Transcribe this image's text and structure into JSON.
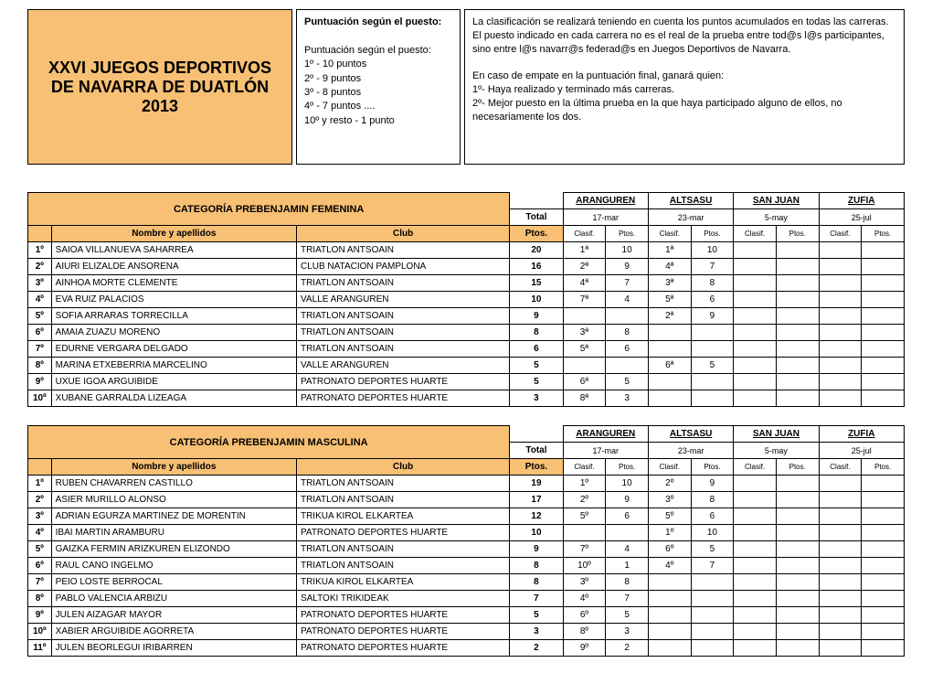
{
  "header": {
    "title": "XXVI\nJUEGOS DEPORTIVOS DE NAVARRA DE DUATLÓN 2013",
    "scoring_title": "Puntuación según el puesto:",
    "scoring_body": "Puntuación según el puesto:\n1º - 10 puntos\n2º - 9 puntos\n3º - 8 puntos\n4º - 7 puntos ....\n10º y resto - 1 punto",
    "rules": "La clasificación se realizará teniendo en cuenta los puntos acumulados en todas las carreras. El puesto indicado en cada carrera no es el real de la prueba entre tod@s l@s participantes, sino entre l@s navarr@s federad@s en Juegos Deportivos de Navarra.\n\nEn caso de empate en la puntuación final, ganará quien:\n1º- Haya realizado y terminado más carreras.\n2º- Mejor puesto en la última prueba en la que haya participado alguno de ellos, no necesariamente los dos."
  },
  "events": [
    {
      "name": "ARANGUREN",
      "date": "17-mar"
    },
    {
      "name": "ALTSASU",
      "date": "23-mar"
    },
    {
      "name": "SAN JUAN",
      "date": "5-may"
    },
    {
      "name": "ZUFIA",
      "date": "25-jul"
    }
  ],
  "labels": {
    "total": "Total",
    "name": "Nombre y apellidos",
    "club": "Club",
    "ptos": "Ptos.",
    "clasif": "Clasif."
  },
  "categories": [
    {
      "title": "CATEGORÍA PREBENJAMIN FEMENINA",
      "rows": [
        {
          "rank": "1º",
          "name": "SAIOA VILLANUEVA SAHARREA",
          "club": "TRIATLON ANTSOAIN",
          "total": "20",
          "r": [
            [
              "1ª",
              "10"
            ],
            [
              "1ª",
              "10"
            ],
            [
              "",
              ""
            ],
            [
              "",
              ""
            ]
          ]
        },
        {
          "rank": "2º",
          "name": "AIURI ELIZALDE ANSORENA",
          "club": "CLUB NATACION PAMPLONA",
          "total": "16",
          "r": [
            [
              "2ª",
              "9"
            ],
            [
              "4ª",
              "7"
            ],
            [
              "",
              ""
            ],
            [
              "",
              ""
            ]
          ]
        },
        {
          "rank": "3º",
          "name": "AINHOA MORTE CLEMENTE",
          "club": "TRIATLON ANTSOAIN",
          "total": "15",
          "r": [
            [
              "4ª",
              "7"
            ],
            [
              "3ª",
              "8"
            ],
            [
              "",
              ""
            ],
            [
              "",
              ""
            ]
          ]
        },
        {
          "rank": "4º",
          "name": "EVA RUIZ PALACIOS",
          "club": "VALLE ARANGUREN",
          "total": "10",
          "r": [
            [
              "7ª",
              "4"
            ],
            [
              "5ª",
              "6"
            ],
            [
              "",
              ""
            ],
            [
              "",
              ""
            ]
          ]
        },
        {
          "rank": "5º",
          "name": "SOFIA ARRARAS TORRECILLA",
          "club": "TRIATLON ANTSOAIN",
          "total": "9",
          "r": [
            [
              "",
              ""
            ],
            [
              "2ª",
              "9"
            ],
            [
              "",
              ""
            ],
            [
              "",
              ""
            ]
          ]
        },
        {
          "rank": "6º",
          "name": "AMAIA ZUAZU MORENO",
          "club": "TRIATLON ANTSOAIN",
          "total": "8",
          "r": [
            [
              "3ª",
              "8"
            ],
            [
              "",
              ""
            ],
            [
              "",
              ""
            ],
            [
              "",
              ""
            ]
          ]
        },
        {
          "rank": "7º",
          "name": "EDURNE VERGARA DELGADO",
          "club": "TRIATLON ANTSOAIN",
          "total": "6",
          "r": [
            [
              "5ª",
              "6"
            ],
            [
              "",
              ""
            ],
            [
              "",
              ""
            ],
            [
              "",
              ""
            ]
          ]
        },
        {
          "rank": "8º",
          "name": "MARINA ETXEBERRIA MARCELINO",
          "club": "VALLE ARANGUREN",
          "total": "5",
          "r": [
            [
              "",
              ""
            ],
            [
              "6ª",
              "5"
            ],
            [
              "",
              ""
            ],
            [
              "",
              ""
            ]
          ]
        },
        {
          "rank": "9º",
          "name": "UXUE IGOA ARGUIBIDE",
          "club": "PATRONATO DEPORTES HUARTE",
          "total": "5",
          "r": [
            [
              "6ª",
              "5"
            ],
            [
              "",
              ""
            ],
            [
              "",
              ""
            ],
            [
              "",
              ""
            ]
          ]
        },
        {
          "rank": "10º",
          "name": "XUBANE GARRALDA LIZEAGA",
          "club": "PATRONATO DEPORTES HUARTE",
          "total": "3",
          "r": [
            [
              "8ª",
              "3"
            ],
            [
              "",
              ""
            ],
            [
              "",
              ""
            ],
            [
              "",
              ""
            ]
          ]
        }
      ]
    },
    {
      "title": "CATEGORÍA PREBENJAMIN MASCULINA",
      "rows": [
        {
          "rank": "1º",
          "name": "RUBEN CHAVARREN CASTILLO",
          "club": "TRIATLON ANTSOAIN",
          "total": "19",
          "r": [
            [
              "1º",
              "10"
            ],
            [
              "2º",
              "9"
            ],
            [
              "",
              ""
            ],
            [
              "",
              ""
            ]
          ]
        },
        {
          "rank": "2º",
          "name": "ASIER MURILLO ALONSO",
          "club": "TRIATLON ANTSOAIN",
          "total": "17",
          "r": [
            [
              "2º",
              "9"
            ],
            [
              "3º",
              "8"
            ],
            [
              "",
              ""
            ],
            [
              "",
              ""
            ]
          ]
        },
        {
          "rank": "3º",
          "name": "ADRIAN EGURZA MARTINEZ DE MORENTIN",
          "club": "TRIKUA KIROL ELKARTEA",
          "total": "12",
          "r": [
            [
              "5º",
              "6"
            ],
            [
              "5º",
              "6"
            ],
            [
              "",
              ""
            ],
            [
              "",
              ""
            ]
          ]
        },
        {
          "rank": "4º",
          "name": "IBAI MARTIN ARAMBURU",
          "club": "PATRONATO DEPORTES HUARTE",
          "total": "10",
          "r": [
            [
              "",
              ""
            ],
            [
              "1º",
              "10"
            ],
            [
              "",
              ""
            ],
            [
              "",
              ""
            ]
          ]
        },
        {
          "rank": "5º",
          "name": "GAIZKA FERMIN ARIZKUREN ELIZONDO",
          "club": "TRIATLON ANTSOAIN",
          "total": "9",
          "r": [
            [
              "7º",
              "4"
            ],
            [
              "6º",
              "5"
            ],
            [
              "",
              ""
            ],
            [
              "",
              ""
            ]
          ]
        },
        {
          "rank": "6º",
          "name": "RAUL CANO INGELMO",
          "club": "TRIATLON ANTSOAIN",
          "total": "8",
          "r": [
            [
              "10º",
              "1"
            ],
            [
              "4º",
              "7"
            ],
            [
              "",
              ""
            ],
            [
              "",
              ""
            ]
          ]
        },
        {
          "rank": "7º",
          "name": "PEIO LOSTE BERROCAL",
          "club": "TRIKUA KIROL ELKARTEA",
          "total": "8",
          "r": [
            [
              "3º",
              "8"
            ],
            [
              "",
              ""
            ],
            [
              "",
              ""
            ],
            [
              "",
              ""
            ]
          ]
        },
        {
          "rank": "8º",
          "name": "PABLO VALENCIA ARBIZU",
          "club": "SALTOKI TRIKIDEAK",
          "total": "7",
          "r": [
            [
              "4º",
              "7"
            ],
            [
              "",
              ""
            ],
            [
              "",
              ""
            ],
            [
              "",
              ""
            ]
          ]
        },
        {
          "rank": "9º",
          "name": "JULEN AIZAGAR MAYOR",
          "club": "PATRONATO DEPORTES HUARTE",
          "total": "5",
          "r": [
            [
              "6º",
              "5"
            ],
            [
              "",
              ""
            ],
            [
              "",
              ""
            ],
            [
              "",
              ""
            ]
          ]
        },
        {
          "rank": "10º",
          "name": "XABIER ARGUIBIDE AGORRETA",
          "club": "PATRONATO DEPORTES HUARTE",
          "total": "3",
          "r": [
            [
              "8º",
              "3"
            ],
            [
              "",
              ""
            ],
            [
              "",
              ""
            ],
            [
              "",
              ""
            ]
          ]
        },
        {
          "rank": "11º",
          "name": "JULEN BEORLEGUI IRIBARREN",
          "club": "PATRONATO DEPORTES HUARTE",
          "total": "2",
          "r": [
            [
              "9º",
              "2"
            ],
            [
              "",
              ""
            ],
            [
              "",
              ""
            ],
            [
              "",
              ""
            ]
          ]
        }
      ]
    }
  ]
}
